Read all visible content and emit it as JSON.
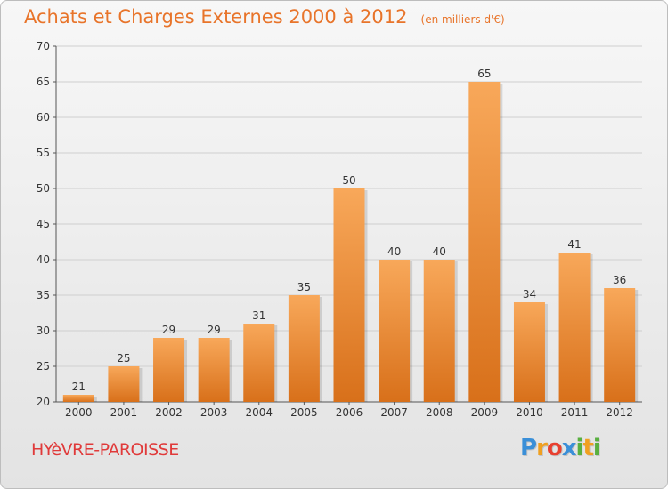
{
  "chart_data": {
    "type": "bar",
    "title": "Achats et Charges Externes 2000 à 2012",
    "unit": "(en milliers d'€)",
    "categories": [
      "2000",
      "2001",
      "2002",
      "2003",
      "2004",
      "2005",
      "2006",
      "2007",
      "2008",
      "2009",
      "2010",
      "2011",
      "2012"
    ],
    "values": [
      21,
      25,
      29,
      29,
      31,
      35,
      50,
      40,
      40,
      65,
      34,
      41,
      36
    ],
    "ylim": [
      20,
      70
    ],
    "yticks": [
      20,
      25,
      30,
      35,
      40,
      45,
      50,
      55,
      60,
      65,
      70
    ],
    "grid": true,
    "bar_color_top": "#f8a85a",
    "bar_color_bottom": "#d8701a",
    "grid_color": "#cfcfcf"
  },
  "footer": {
    "commune": "HYèVRE-PAROISSE",
    "logo_letters": [
      {
        "char": "P",
        "color": "#3a8fd8"
      },
      {
        "char": "r",
        "color": "#f0a020"
      },
      {
        "char": "o",
        "color": "#e84030"
      },
      {
        "char": "x",
        "color": "#3a8fd8"
      },
      {
        "char": "i",
        "color": "#59b040"
      },
      {
        "char": "t",
        "color": "#f0a020"
      },
      {
        "char": "i",
        "color": "#59b040"
      }
    ]
  }
}
